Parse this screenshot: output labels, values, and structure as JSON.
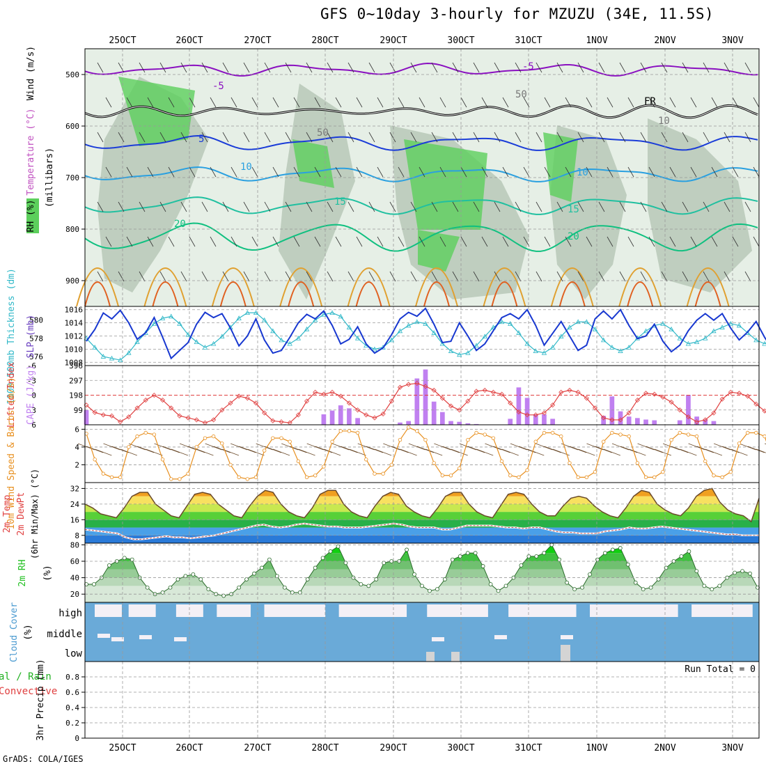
{
  "header": {
    "title": "GFS 0~10day 3-hourly for MZUZU (34E, 11.5S)"
  },
  "footer": {
    "credit": "GrADS: COLA/IGES"
  },
  "colors": {
    "rh_fill": "#c9dcc9",
    "rh_dark": "#9fb39f",
    "rh_green": "#5ccf5c",
    "temp_purple": "#8a10c0",
    "temp_blue": "#1a3cd8",
    "temp_lblue": "#2aa0e0",
    "temp_teal": "#20c0a0",
    "temp_green": "#10c080",
    "temp_orange": "#e0a030",
    "slp": "#1838d0",
    "thickness": "#30b8c8",
    "lifted": "#e04040",
    "cape": "#c080f0",
    "wind": "#e89020",
    "cloud": "#6aaad8",
    "rh2m": "#20c020"
  },
  "chart_data": [
    {
      "type": "contour",
      "panel": "upper-air",
      "ylabel_rh": "RH (%)",
      "ylabel_temp": "Temperature (°C)",
      "ylabel_wind": "Wind (m/s)",
      "ylabel_units": "(millibars)",
      "yticks": [
        "500",
        "600",
        "700",
        "800",
        "900"
      ],
      "ylim": [
        450,
        950
      ],
      "isotherm_labels": [
        "-5",
        "-5",
        "FR",
        "5",
        "10",
        "10",
        "15",
        "15",
        "20",
        "20",
        "50",
        "50",
        "10"
      ],
      "x_ticks_top": [
        "25OCT",
        "26OCT",
        "27OCT",
        "28OCT",
        "29OCT",
        "30OCT",
        "31OCT",
        "1NOV",
        "2NOV",
        "3NOV"
      ]
    },
    {
      "type": "line",
      "panel": "slp-thickness",
      "ylabel_left": "1000-500mb Thickness (dm)",
      "ylabel_right": "SLP (mb)",
      "yticks_left": [
        "576",
        "578",
        "580"
      ],
      "yticks_right": [
        "1008",
        "1010",
        "1012",
        "1014",
        "1016"
      ],
      "ylim_slp": [
        1007.5,
        1016.5
      ],
      "ylim_thick": [
        575,
        581.5
      ],
      "series": [
        {
          "name": "SLP",
          "values": [
            1011.2,
            1013,
            1015.5,
            1014.6,
            1015.9,
            1014,
            1011.5,
            1012.5,
            1014.8,
            1011.8,
            1008.6,
            1009.8,
            1011,
            1013.8,
            1015.6,
            1014.8,
            1015.4,
            1013.2,
            1010.5,
            1012,
            1014.6,
            1011.4,
            1009.4,
            1009.8,
            1011.8,
            1014,
            1015.3,
            1014.6,
            1015.8,
            1013.6,
            1010.8,
            1011.5,
            1013.4,
            1010.8,
            1009.4,
            1010.2,
            1012.2,
            1014.6,
            1015.6,
            1015,
            1016.2,
            1013.8,
            1011,
            1011.2,
            1014,
            1012,
            1009.8,
            1010.8,
            1012.8,
            1014.8,
            1015.4,
            1014.6,
            1016,
            1013.6,
            1010.6,
            1012.4,
            1014.2,
            1012,
            1009.8,
            1010.6,
            1014.6,
            1015.8,
            1014.6,
            1016,
            1013.6,
            1011.6,
            1012,
            1013.8,
            1011.2,
            1009.6,
            1010.6,
            1012.8,
            1014.4,
            1015.4,
            1014.4,
            1015.4,
            1013.2,
            1011.4,
            1012.6,
            1014.2,
            1011.8,
            1009.8,
            1010.4,
            1012.6,
            1015,
            1016.2,
            1014.8,
            1015.8,
            1014,
            1010.6,
            1008.8,
            1010.4,
            1011.6,
            1010,
            1011.2,
            1013,
            1013.8
          ]
        },
        {
          "name": "Thickness",
          "values": [
            578,
            577,
            576,
            575.8,
            575.6,
            576.4,
            577.6,
            578.6,
            579.6,
            580.2,
            580.4,
            579.6,
            578.4,
            577.6,
            577,
            577.4,
            578.2,
            579.2,
            580.2,
            580.8,
            580.8,
            580,
            578.8,
            577.8,
            577.4,
            578,
            579,
            580,
            580.6,
            580.8,
            580.4,
            579.2,
            578,
            577.2,
            576.8,
            577,
            577.8,
            578.8,
            579.4,
            579.8,
            579.6,
            578.6,
            577.4,
            576.6,
            576.2,
            576.4,
            577.2,
            578.2,
            579.2,
            579.8,
            579.6,
            578.6,
            577.4,
            576.6,
            576.4,
            577,
            578.2,
            579.2,
            579.8,
            579.8,
            579,
            577.8,
            577,
            576.6,
            577,
            578,
            578.8,
            579.4,
            579.6,
            579,
            578,
            577.4,
            577.6,
            578,
            578.8,
            579.2,
            579.6,
            579.4,
            578.6,
            577.8,
            577.4,
            578,
            578.6,
            579.2,
            579.8,
            580.2,
            579.6,
            579,
            578.4,
            579.2,
            580,
            580.8,
            581,
            580.4,
            579.4,
            578.4,
            577.6
          ]
        }
      ]
    },
    {
      "type": "bar+line",
      "panel": "lifted-cape",
      "ylabel_left": "Lifted Index",
      "ylabel_right": "CAPE (J/kg)",
      "yticks_li": [
        "-6",
        "-3",
        "0",
        "3",
        "6"
      ],
      "yticks_cape": [
        "99",
        "198",
        "297",
        "396"
      ],
      "ylim_li": [
        -6,
        6
      ],
      "ylim_cape": [
        0,
        396
      ],
      "series": [
        {
          "name": "Lifted Index",
          "values": [
            2,
            3.5,
            4,
            4.2,
            5.4,
            4.4,
            2.6,
            1,
            0,
            1,
            2.6,
            4.2,
            4.6,
            5,
            5.6,
            5,
            3,
            1.6,
            0.2,
            0.6,
            1.6,
            3.6,
            5.2,
            5.4,
            5.6,
            4,
            1.2,
            -0.6,
            -0.2,
            -0.6,
            0.2,
            1.6,
            3,
            4,
            4.6,
            3.8,
            1.2,
            -1.6,
            -2.2,
            -2.4,
            -1.8,
            -1,
            0.6,
            2.2,
            3,
            1.2,
            -0.8,
            -1,
            -0.6,
            -0.2,
            1.6,
            3.4,
            4,
            4,
            3.6,
            2,
            -0.6,
            -1,
            -0.6,
            0.6,
            2.6,
            4.6,
            5,
            5,
            3.6,
            1,
            -0.4,
            -0.2,
            0.4,
            1.4,
            3,
            4.4,
            5.4,
            5,
            3.6,
            0.8,
            -0.6,
            -0.4,
            0.2,
            1.8,
            3.2,
            4.6,
            5.6,
            5.2,
            3.8,
            1,
            -0.4,
            -0.2,
            0.4,
            1.4,
            3.4,
            5,
            5.8,
            5.4,
            4,
            2.4
          ]
        },
        {
          "name": "CAPE",
          "values": [
            99,
            0,
            0,
            0,
            0,
            0,
            0,
            0,
            0,
            0,
            0,
            0,
            0,
            0,
            0,
            0,
            0,
            0,
            0,
            0,
            0,
            0,
            0,
            0,
            0,
            0,
            0,
            0,
            70,
            95,
            130,
            110,
            45,
            0,
            0,
            0,
            0,
            15,
            25,
            310,
            370,
            155,
            85,
            25,
            20,
            10,
            5,
            0,
            0,
            0,
            40,
            250,
            180,
            70,
            70,
            40,
            0,
            0,
            0,
            0,
            0,
            60,
            190,
            90,
            55,
            45,
            35,
            30,
            0,
            0,
            30,
            200,
            55,
            35,
            25,
            0,
            0,
            0,
            0,
            0,
            0,
            0,
            0,
            0,
            0,
            0,
            0,
            0,
            0,
            0,
            0,
            0,
            0,
            0,
            0,
            0,
            0
          ]
        }
      ]
    },
    {
      "type": "line",
      "panel": "wind10m",
      "ylabel": "10m Wind Speed & Barbs (m/s)",
      "yticks": [
        "2",
        "4",
        "6"
      ],
      "ylim": [
        0,
        6.5
      ],
      "series": [
        {
          "name": "10m Wind Speed",
          "values": [
            5.5,
            2.6,
            1,
            0.6,
            0.6,
            4,
            5.2,
            5.6,
            5.4,
            2.6,
            0.4,
            0.4,
            1,
            4,
            5,
            5.2,
            4.4,
            2,
            0.6,
            0.4,
            0.6,
            3.6,
            5,
            5,
            4.6,
            2.4,
            0.6,
            0.8,
            1.8,
            4.6,
            5.8,
            5.8,
            5.6,
            2.6,
            1,
            1,
            2,
            4.8,
            6.2,
            5.8,
            4.8,
            2.2,
            0.8,
            0.8,
            1.6,
            4.8,
            5.6,
            5.4,
            5,
            2.4,
            0.8,
            0.6,
            1.4,
            4.6,
            5.6,
            5.6,
            5.2,
            2.2,
            0.6,
            0.6,
            1.2,
            4.6,
            5.6,
            5.4,
            5.2,
            2.2,
            0.6,
            0.6,
            1.2,
            4.8,
            5.6,
            5.4,
            5.2,
            2.4,
            0.8,
            0.6,
            1.2,
            4.4,
            5.6,
            5.6,
            5.2,
            2.4,
            0.6,
            0.6,
            1.4,
            4.6,
            5.8,
            5.4,
            5,
            1.8,
            0.4,
            0.4,
            1.2,
            3.6
          ]
        }
      ]
    },
    {
      "type": "area",
      "panel": "temp2m",
      "ylabel": "2m Temp 2m DewPt (6hr Min/Max) (°C)",
      "yticks": [
        "8",
        "16",
        "24",
        "32"
      ],
      "ylim": [
        4,
        35
      ],
      "series": [
        {
          "name": "2m Temp",
          "values": [
            24,
            22,
            19,
            18,
            17,
            22,
            28,
            30,
            30,
            24,
            21,
            18,
            17,
            23,
            29,
            30,
            29,
            24,
            21,
            18,
            17,
            23,
            28,
            31,
            30,
            24,
            20,
            18,
            17,
            22,
            29,
            31,
            31,
            24,
            20,
            18,
            17,
            23,
            28,
            30,
            29,
            23,
            20,
            18,
            17,
            22,
            28,
            30,
            30,
            24,
            20,
            18,
            17,
            23,
            29,
            30,
            29,
            24,
            20,
            18,
            18,
            23,
            27,
            28,
            27,
            23,
            20,
            18,
            17,
            22,
            28,
            31,
            30,
            24,
            21,
            19,
            18,
            22,
            28,
            31,
            32,
            25,
            21,
            19,
            18,
            15,
            27
          ]
        },
        {
          "name": "2m DewPt",
          "values": [
            11,
            10.5,
            10,
            9.5,
            9,
            7,
            6,
            6,
            6.5,
            7,
            7.5,
            7,
            7,
            6.5,
            7,
            7.5,
            8,
            9,
            10,
            11,
            12,
            13,
            13.5,
            12.5,
            12,
            12.5,
            13.5,
            14,
            13.5,
            13,
            12.5,
            12.5,
            12,
            12,
            12,
            12.5,
            13,
            13.5,
            14,
            13.5,
            12.5,
            12,
            12,
            12,
            11,
            11,
            12,
            13,
            13,
            13,
            13,
            12.5,
            12,
            12,
            11.5,
            12,
            12,
            11,
            10,
            9.5,
            9.5,
            9,
            9,
            9,
            10,
            10.5,
            11,
            12,
            11.5,
            11.5,
            12,
            12.5,
            12,
            11.5,
            11,
            10.5,
            10,
            9.5,
            9,
            8.5,
            8.5,
            8,
            8,
            8
          ]
        }
      ]
    },
    {
      "type": "area",
      "panel": "rh2m",
      "ylabel": "2m RH (%)",
      "yticks": [
        "20",
        "40",
        "60",
        "80"
      ],
      "ylim": [
        10,
        82
      ],
      "series": [
        {
          "name": "2m RH",
          "values": [
            32,
            32,
            40,
            55,
            60,
            64,
            62,
            40,
            28,
            20,
            22,
            28,
            38,
            42,
            44,
            38,
            26,
            20,
            18,
            20,
            28,
            38,
            45,
            52,
            62,
            42,
            28,
            22,
            22,
            38,
            52,
            64,
            72,
            78,
            58,
            40,
            32,
            30,
            38,
            58,
            60,
            60,
            74,
            44,
            30,
            24,
            26,
            38,
            62,
            66,
            70,
            70,
            54,
            32,
            24,
            30,
            40,
            55,
            66,
            66,
            70,
            80,
            62,
            34,
            26,
            28,
            44,
            62,
            70,
            74,
            76,
            56,
            34,
            26,
            28,
            38,
            52,
            60,
            66,
            72,
            48,
            30,
            26,
            30,
            40,
            46,
            48,
            45,
            28
          ]
        }
      ]
    },
    {
      "type": "bar",
      "panel": "cloud",
      "ylabel": "Cloud Cover (%)",
      "levels": [
        "high",
        "middle",
        "low"
      ]
    },
    {
      "type": "bar",
      "panel": "precip",
      "ylabel_main": "3hr Precip (mm)",
      "ylabel_total": "al / Rain",
      "ylabel_conv": "Convective",
      "annotation": "Run Total = 0",
      "yticks": [
        "0",
        "0.2",
        "0.4",
        "0.6",
        "0.8"
      ],
      "ylim": [
        0,
        1
      ],
      "values": [],
      "x_ticks": [
        "25OCT",
        "26OCT",
        "27OCT",
        "28OCT",
        "29OCT",
        "30OCT",
        "31OCT",
        "1NOV",
        "2NOV",
        "3NOV"
      ]
    }
  ]
}
